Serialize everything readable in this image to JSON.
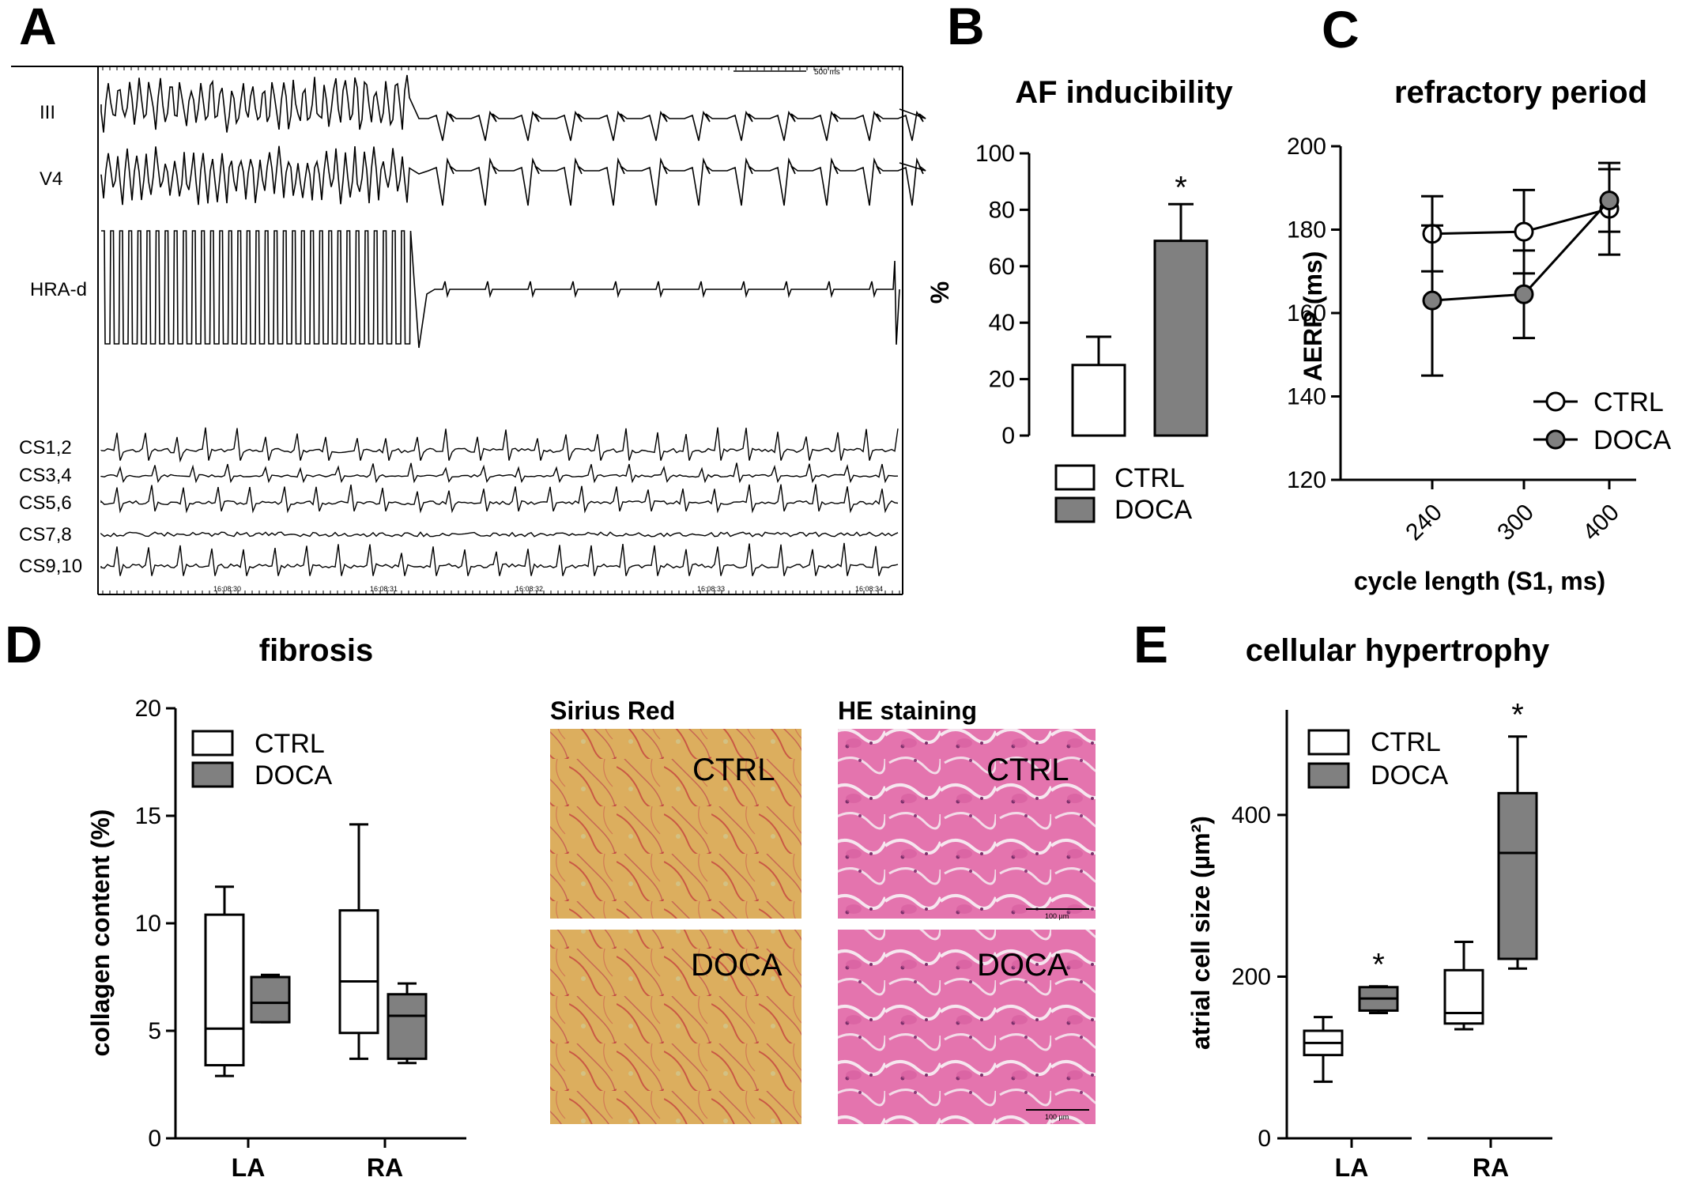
{
  "panel_labels": [
    "A",
    "B",
    "C",
    "D",
    "E"
  ],
  "panel_a": {
    "leads": [
      "III",
      "V4",
      "HRA-d",
      "CS1,2",
      "CS3,4",
      "CS5,6",
      "CS7,8",
      "CS9,10"
    ],
    "scale_label": "500 ms",
    "time_labels": [
      "16:08:30",
      "16:08:31",
      "16:08:32",
      "16:08:33",
      "16:08:34"
    ]
  },
  "panel_d": {
    "stain_headers": [
      "Sirius Red",
      "HE staining"
    ],
    "image_labels": [
      "CTRL",
      "DOCA",
      "CTRL",
      "DOCA"
    ],
    "scale_bar": "100 µm",
    "colors": {
      "sirius": "#d9a85a",
      "he": "#e070a8"
    }
  },
  "colors": {
    "ctrl": "#ffffff",
    "doca": "#808080",
    "line": "#000000"
  },
  "chart_data": [
    {
      "type": "bar",
      "panel": "B",
      "title": "AF inducibility",
      "xlabel": "",
      "ylabel": "%",
      "ylim": [
        0,
        100
      ],
      "yticks": [
        0,
        20,
        40,
        60,
        80,
        100
      ],
      "categories": [
        "CTRL",
        "DOCA"
      ],
      "values": [
        25,
        69
      ],
      "errors": [
        10,
        13
      ],
      "significance": [
        "",
        "*"
      ],
      "legend": [
        "CTRL",
        "DOCA"
      ],
      "legend_position": "bottom"
    },
    {
      "type": "line",
      "panel": "C",
      "title": "refractory period",
      "xlabel": "cycle length (S1, ms)",
      "ylabel": "AERP (ms)",
      "ylim": [
        120,
        200
      ],
      "yticks": [
        120,
        140,
        160,
        180,
        200
      ],
      "x": [
        "240",
        "300",
        "400"
      ],
      "series": [
        {
          "name": "CTRL",
          "values": [
            179,
            179.5,
            185
          ],
          "errors": [
            9,
            10,
            11
          ]
        },
        {
          "name": "DOCA",
          "values": [
            163,
            164.5,
            187
          ],
          "errors": [
            18,
            10.5,
            7.5
          ]
        }
      ],
      "legend_position": "right"
    },
    {
      "type": "box",
      "panel": "D",
      "title": "fibrosis",
      "xlabel": "",
      "ylabel": "collagen content (%)",
      "ylim": [
        0,
        20
      ],
      "yticks": [
        0,
        5,
        10,
        15,
        20
      ],
      "categories": [
        "LA",
        "RA"
      ],
      "series": [
        {
          "name": "CTRL",
          "boxes": [
            [
              2.9,
              3.4,
              5.1,
              10.4,
              11.7
            ],
            [
              3.7,
              4.9,
              7.3,
              10.6,
              14.6
            ]
          ]
        },
        {
          "name": "DOCA",
          "boxes": [
            [
              5.4,
              5.4,
              6.3,
              7.5,
              7.6
            ],
            [
              3.5,
              3.7,
              5.7,
              6.7,
              7.2
            ]
          ]
        }
      ],
      "legend_position": "top-left"
    },
    {
      "type": "box",
      "panel": "E",
      "title": "cellular hypertrophy",
      "xlabel": "",
      "ylabel": "atrial cell size (µm²)",
      "ylim": [
        0,
        530
      ],
      "yticks": [
        0,
        200,
        400
      ],
      "categories": [
        "LA",
        "RA"
      ],
      "series": [
        {
          "name": "CTRL",
          "boxes": [
            [
              70,
              103,
              118,
              133,
              150
            ],
            [
              135,
              142,
              155,
              208,
              243
            ]
          ]
        },
        {
          "name": "DOCA",
          "boxes": [
            [
              155,
              158,
              173,
              187,
              188
            ],
            [
              210,
              222,
              353,
              427,
              497
            ]
          ]
        }
      ],
      "significance": [
        "*",
        "*"
      ],
      "legend_position": "top-left"
    }
  ]
}
